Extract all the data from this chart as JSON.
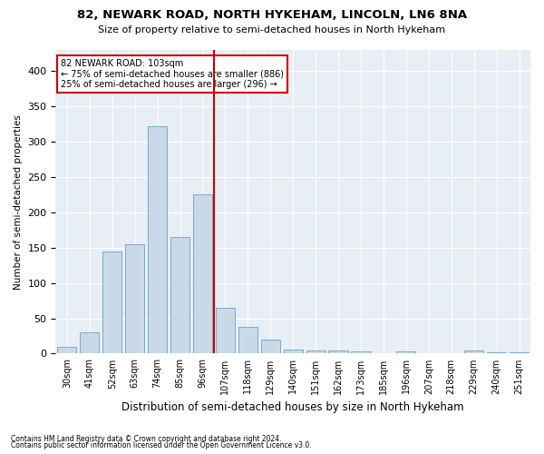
{
  "title1": "82, NEWARK ROAD, NORTH HYKEHAM, LINCOLN, LN6 8NA",
  "title2": "Size of property relative to semi-detached houses in North Hykeham",
  "xlabel": "Distribution of semi-detached houses by size in North Hykeham",
  "ylabel": "Number of semi-detached properties",
  "footnote1": "Contains HM Land Registry data © Crown copyright and database right 2024.",
  "footnote2": "Contains public sector information licensed under the Open Government Licence v3.0.",
  "categories": [
    "30sqm",
    "41sqm",
    "52sqm",
    "63sqm",
    "74sqm",
    "85sqm",
    "96sqm",
    "107sqm",
    "118sqm",
    "129sqm",
    "140sqm",
    "151sqm",
    "162sqm",
    "173sqm",
    "185sqm",
    "196sqm",
    "207sqm",
    "218sqm",
    "229sqm",
    "240sqm",
    "251sqm"
  ],
  "values": [
    10,
    30,
    145,
    155,
    322,
    165,
    225,
    65,
    38,
    20,
    6,
    5,
    4,
    3,
    0,
    3,
    0,
    0,
    4,
    2,
    2
  ],
  "bar_color": "#c9d9e8",
  "bar_edge_color": "#7aaac8",
  "highlight_label": "82 NEWARK ROAD: 103sqm",
  "annotation_line1": "← 75% of semi-detached houses are smaller (886)",
  "annotation_line2": "25% of semi-detached houses are larger (296) →",
  "vline_color": "#cc0000",
  "vline_position": 6.5,
  "annotation_box_color": "#ffffff",
  "annotation_box_edge": "#cc0000",
  "bg_color": "#e8eef5",
  "ylim": [
    0,
    430
  ],
  "yticks": [
    0,
    50,
    100,
    150,
    200,
    250,
    300,
    350,
    400
  ]
}
